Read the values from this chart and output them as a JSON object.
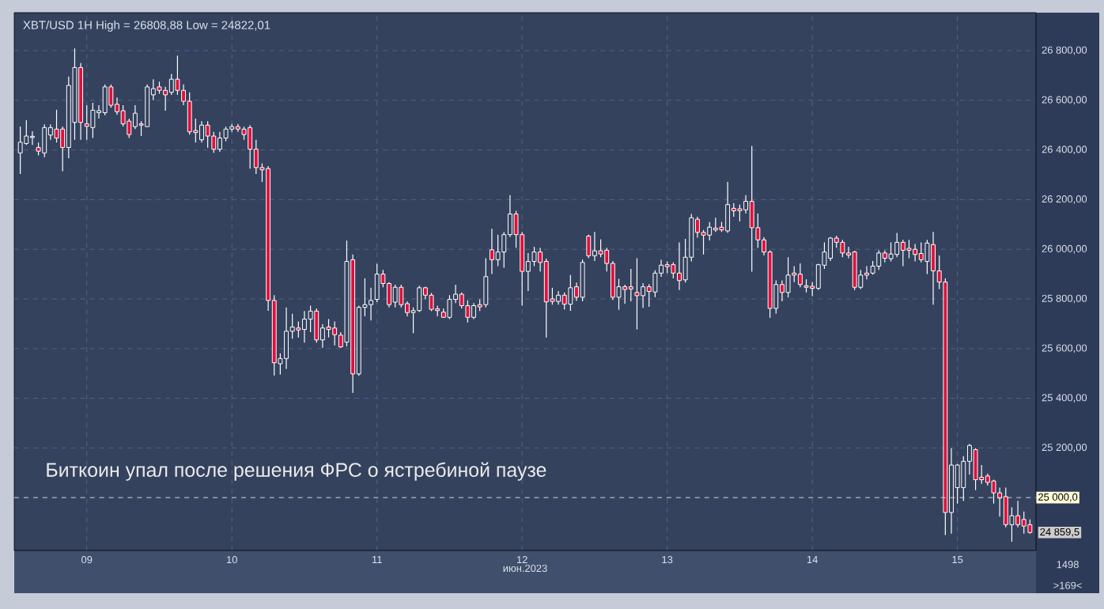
{
  "chart_data": {
    "type": "candlestick",
    "title": "XBT/USD 1H High = 26808,88 Low = 24822,01",
    "xlabel": "июн.2023",
    "x": [
      "2023-06-08T13:00",
      "2023-06-08T14:00",
      "2023-06-08T15:00",
      "2023-06-08T16:00",
      "2023-06-08T17:00",
      "2023-06-08T18:00",
      "2023-06-08T19:00",
      "2023-06-08T20:00",
      "2023-06-08T21:00",
      "2023-06-08T22:00",
      "2023-06-08T23:00",
      "2023-06-09T00:00",
      "2023-06-09T01:00",
      "2023-06-09T02:00",
      "2023-06-09T03:00",
      "2023-06-09T04:00",
      "2023-06-09T05:00",
      "2023-06-09T06:00",
      "2023-06-09T07:00",
      "2023-06-09T08:00",
      "2023-06-09T09:00",
      "2023-06-09T10:00",
      "2023-06-09T11:00",
      "2023-06-09T12:00",
      "2023-06-09T13:00",
      "2023-06-09T14:00",
      "2023-06-09T15:00",
      "2023-06-09T16:00",
      "2023-06-09T17:00",
      "2023-06-09T18:00",
      "2023-06-09T19:00",
      "2023-06-09T20:00",
      "2023-06-09T21:00",
      "2023-06-09T22:00",
      "2023-06-09T23:00",
      "2023-06-10T00:00",
      "2023-06-10T01:00",
      "2023-06-10T02:00",
      "2023-06-10T03:00",
      "2023-06-10T04:00",
      "2023-06-10T05:00",
      "2023-06-10T06:00",
      "2023-06-10T07:00",
      "2023-06-10T08:00",
      "2023-06-10T09:00",
      "2023-06-10T10:00",
      "2023-06-10T11:00",
      "2023-06-10T12:00",
      "2023-06-10T13:00",
      "2023-06-10T14:00",
      "2023-06-10T15:00",
      "2023-06-10T16:00",
      "2023-06-10T17:00",
      "2023-06-10T18:00",
      "2023-06-10T19:00",
      "2023-06-10T20:00",
      "2023-06-10T21:00",
      "2023-06-10T22:00",
      "2023-06-10T23:00",
      "2023-06-11T00:00",
      "2023-06-11T01:00",
      "2023-06-11T02:00",
      "2023-06-11T03:00",
      "2023-06-11T04:00",
      "2023-06-11T05:00",
      "2023-06-11T06:00",
      "2023-06-11T07:00",
      "2023-06-11T08:00",
      "2023-06-11T09:00",
      "2023-06-11T10:00",
      "2023-06-11T11:00",
      "2023-06-11T12:00",
      "2023-06-11T13:00",
      "2023-06-11T14:00",
      "2023-06-11T15:00",
      "2023-06-11T16:00",
      "2023-06-11T17:00",
      "2023-06-11T18:00",
      "2023-06-11T19:00",
      "2023-06-11T20:00",
      "2023-06-11T21:00",
      "2023-06-11T22:00",
      "2023-06-11T23:00",
      "2023-06-12T00:00",
      "2023-06-12T01:00",
      "2023-06-12T02:00",
      "2023-06-12T03:00",
      "2023-06-12T04:00",
      "2023-06-12T05:00",
      "2023-06-12T06:00",
      "2023-06-12T07:00",
      "2023-06-12T08:00",
      "2023-06-12T09:00",
      "2023-06-12T10:00",
      "2023-06-12T11:00",
      "2023-06-12T12:00",
      "2023-06-12T13:00",
      "2023-06-12T14:00",
      "2023-06-12T15:00",
      "2023-06-12T16:00",
      "2023-06-12T17:00",
      "2023-06-12T18:00",
      "2023-06-12T19:00",
      "2023-06-12T20:00",
      "2023-06-12T21:00",
      "2023-06-12T22:00",
      "2023-06-12T23:00",
      "2023-06-13T00:00",
      "2023-06-13T01:00",
      "2023-06-13T02:00",
      "2023-06-13T03:00",
      "2023-06-13T04:00",
      "2023-06-13T05:00",
      "2023-06-13T06:00",
      "2023-06-13T07:00",
      "2023-06-13T08:00",
      "2023-06-13T09:00",
      "2023-06-13T10:00",
      "2023-06-13T11:00",
      "2023-06-13T12:00",
      "2023-06-13T13:00",
      "2023-06-13T14:00",
      "2023-06-13T15:00",
      "2023-06-13T16:00",
      "2023-06-13T17:00",
      "2023-06-13T18:00",
      "2023-06-13T19:00",
      "2023-06-13T20:00",
      "2023-06-13T21:00",
      "2023-06-13T22:00",
      "2023-06-13T23:00",
      "2023-06-14T00:00",
      "2023-06-14T01:00",
      "2023-06-14T02:00",
      "2023-06-14T03:00",
      "2023-06-14T04:00",
      "2023-06-14T05:00",
      "2023-06-14T06:00",
      "2023-06-14T07:00",
      "2023-06-14T08:00",
      "2023-06-14T09:00",
      "2023-06-14T10:00",
      "2023-06-14T11:00",
      "2023-06-14T12:00",
      "2023-06-14T13:00",
      "2023-06-14T14:00",
      "2023-06-14T15:00",
      "2023-06-14T16:00",
      "2023-06-14T17:00",
      "2023-06-14T18:00",
      "2023-06-14T19:00",
      "2023-06-14T20:00",
      "2023-06-14T21:00",
      "2023-06-14T22:00",
      "2023-06-14T23:00",
      "2023-06-15T00:00",
      "2023-06-15T01:00",
      "2023-06-15T02:00",
      "2023-06-15T03:00",
      "2023-06-15T04:00",
      "2023-06-15T05:00",
      "2023-06-15T06:00",
      "2023-06-15T07:00",
      "2023-06-15T08:00",
      "2023-06-15T09:00",
      "2023-06-15T10:00",
      "2023-06-15T11:00",
      "2023-06-15T12:00"
    ],
    "ohlc": [
      [
        26388,
        26494,
        26303,
        26431
      ],
      [
        26426,
        26520,
        26420,
        26456
      ],
      [
        26450,
        26475,
        26420,
        26455
      ],
      [
        26410,
        26430,
        26378,
        26395
      ],
      [
        26388,
        26503,
        26371,
        26490
      ],
      [
        26460,
        26503,
        26441,
        26490
      ],
      [
        26484,
        26562,
        26430,
        26448
      ],
      [
        26484,
        26494,
        26314,
        26410
      ],
      [
        26410,
        26696,
        26367,
        26660
      ],
      [
        26511,
        26808.88,
        26441,
        26732
      ],
      [
        26732,
        26750,
        26441,
        26511
      ],
      [
        26505,
        26580,
        26441,
        26495
      ],
      [
        26490,
        26590,
        26448,
        26560
      ],
      [
        26550,
        26580,
        26527,
        26558
      ],
      [
        26550,
        26664,
        26540,
        26654
      ],
      [
        26654,
        26664,
        26570,
        26580
      ],
      [
        26584,
        26611,
        26541,
        26554
      ],
      [
        26558,
        26580,
        26494,
        26505
      ],
      [
        26516,
        26526,
        26448,
        26462
      ],
      [
        26494,
        26580,
        26484,
        26548
      ],
      [
        26505,
        26516,
        26456,
        26500
      ],
      [
        26494,
        26664,
        26494,
        26654
      ],
      [
        26622,
        26685,
        26600,
        26647
      ],
      [
        26654,
        26675,
        26626,
        26640
      ],
      [
        26640,
        26654,
        26558,
        26622
      ],
      [
        26632,
        26706,
        26622,
        26685
      ],
      [
        26685,
        26780,
        26622,
        26640
      ],
      [
        26640,
        26664,
        26580,
        26596
      ],
      [
        26596,
        26632,
        26462,
        26473
      ],
      [
        26478,
        26526,
        26430,
        26470
      ],
      [
        26441,
        26516,
        26430,
        26500
      ],
      [
        26500,
        26516,
        26409,
        26456
      ],
      [
        26456,
        26473,
        26388,
        26403
      ],
      [
        26403,
        26473,
        26392,
        26448
      ],
      [
        26448,
        26494,
        26435,
        26484
      ],
      [
        26484,
        26505,
        26473,
        26494
      ],
      [
        26494,
        26505,
        26473,
        26484
      ],
      [
        26484,
        26494,
        26441,
        26462
      ],
      [
        26490,
        26500,
        26325,
        26403
      ],
      [
        26403,
        26441,
        26303,
        26329
      ],
      [
        26329,
        26346,
        26271,
        26320
      ],
      [
        26325,
        26335,
        25752,
        25794
      ],
      [
        25794,
        25815,
        25492,
        25543
      ],
      [
        25539,
        25581,
        25496,
        25560
      ],
      [
        25560,
        25766,
        25518,
        25670
      ],
      [
        25670,
        25740,
        25640,
        25687
      ],
      [
        25683,
        25709,
        25645,
        25675
      ],
      [
        25677,
        25751,
        25624,
        25719
      ],
      [
        25719,
        25773,
        25666,
        25751
      ],
      [
        25751,
        25762,
        25624,
        25635
      ],
      [
        25635,
        25698,
        25603,
        25683
      ],
      [
        25687,
        25719,
        25645,
        25677
      ],
      [
        25683,
        25709,
        25613,
        25656
      ],
      [
        25654,
        25666,
        25603,
        25607
      ],
      [
        25626,
        26035,
        25609,
        25951
      ],
      [
        25958,
        25979,
        25422,
        25498
      ],
      [
        25498,
        25773,
        25490,
        25766
      ],
      [
        25766,
        25883,
        25730,
        25777
      ],
      [
        25777,
        25845,
        25713,
        25794
      ],
      [
        25798,
        25942,
        25787,
        25900
      ],
      [
        25900,
        25917,
        25847,
        25862
      ],
      [
        25862,
        25868,
        25766,
        25777
      ],
      [
        25787,
        25857,
        25766,
        25847
      ],
      [
        25847,
        25857,
        25766,
        25777
      ],
      [
        25781,
        25790,
        25730,
        25745
      ],
      [
        25745,
        25766,
        25662,
        25753
      ],
      [
        25753,
        25853,
        25747,
        25845
      ],
      [
        25845,
        25849,
        25798,
        25815
      ],
      [
        25815,
        25824,
        25751,
        25758
      ],
      [
        25760,
        25773,
        25730,
        25753
      ],
      [
        25747,
        25762,
        25724,
        25726
      ],
      [
        25726,
        25815,
        25719,
        25798
      ],
      [
        25798,
        25857,
        25783,
        25819
      ],
      [
        25819,
        25826,
        25762,
        25773
      ],
      [
        25773,
        25794,
        25705,
        25726
      ],
      [
        25726,
        25783,
        25719,
        25773
      ],
      [
        25777,
        25798,
        25751,
        25768
      ],
      [
        25777,
        25964,
        25766,
        25890
      ],
      [
        25998,
        26083,
        25900,
        25958
      ],
      [
        25958,
        26059,
        25932,
        25989
      ],
      [
        25989,
        26070,
        25926,
        26059
      ],
      [
        26059,
        26218,
        26049,
        26142
      ],
      [
        26142,
        26155,
        26006,
        26059
      ],
      [
        26059,
        26070,
        25773,
        25911
      ],
      [
        25911,
        25985,
        25832,
        25951
      ],
      [
        25951,
        26010,
        25932,
        25989
      ],
      [
        25989,
        26006,
        25911,
        25947
      ],
      [
        25951,
        25962,
        25645,
        25788
      ],
      [
        25800,
        25845,
        25777,
        25790
      ],
      [
        25790,
        25832,
        25777,
        25815
      ],
      [
        25815,
        25826,
        25758,
        25779
      ],
      [
        25779,
        25896,
        25752,
        25845
      ],
      [
        25849,
        25866,
        25792,
        25807
      ],
      [
        25807,
        25958,
        25790,
        25947
      ],
      [
        26053,
        26059,
        25964,
        25974
      ],
      [
        25974,
        26070,
        25953,
        25994
      ],
      [
        25994,
        26040,
        25968,
        25981
      ],
      [
        25996,
        26006,
        25911,
        25943
      ],
      [
        25943,
        25953,
        25796,
        25807
      ],
      [
        25807,
        25881,
        25756,
        25849
      ],
      [
        25849,
        25857,
        25781,
        25838
      ],
      [
        25849,
        25921,
        25790,
        25840
      ],
      [
        25826,
        25964,
        25677,
        25813
      ],
      [
        25813,
        25864,
        25764,
        25849
      ],
      [
        25849,
        25860,
        25768,
        25830
      ],
      [
        25828,
        25915,
        25807,
        25904
      ],
      [
        25904,
        25958,
        25889,
        25936
      ],
      [
        25938,
        25951,
        25904,
        25930
      ],
      [
        25938,
        25947,
        25883,
        25904
      ],
      [
        25904,
        26028,
        25836,
        25874
      ],
      [
        25877,
        26042,
        25866,
        25968
      ],
      [
        25968,
        26142,
        25951,
        26127
      ],
      [
        26121,
        26131,
        26047,
        26068
      ],
      [
        26068,
        26078,
        25979,
        26057
      ],
      [
        26057,
        26110,
        26036,
        26089
      ],
      [
        26085,
        26127,
        26070,
        26078
      ],
      [
        26089,
        26110,
        26070,
        26078
      ],
      [
        26074,
        26271,
        26066,
        26180
      ],
      [
        26165,
        26186,
        26131,
        26155
      ],
      [
        26163,
        26180,
        26112,
        26155
      ],
      [
        26159,
        26218,
        26144,
        26193
      ],
      [
        26193,
        26416,
        25910,
        26087
      ],
      [
        26087,
        26144,
        26006,
        26038
      ],
      [
        26038,
        26049,
        25975,
        25989
      ],
      [
        25989,
        25996,
        25724,
        25762
      ],
      [
        25762,
        25875,
        25741,
        25858
      ],
      [
        25858,
        25875,
        25790,
        25826
      ],
      [
        25826,
        25968,
        25806,
        25896
      ],
      [
        25904,
        25932,
        25868,
        25896
      ],
      [
        25900,
        25943,
        25847,
        25858
      ],
      [
        25853,
        25879,
        25826,
        25847
      ],
      [
        25851,
        25868,
        25811,
        25843
      ],
      [
        25843,
        25942,
        25836,
        25938
      ],
      [
        25936,
        26028,
        25921,
        25989
      ],
      [
        25964,
        26049,
        25953,
        26045
      ],
      [
        26045,
        26055,
        26006,
        26028
      ],
      [
        26028,
        26038,
        25968,
        25985
      ],
      [
        25985,
        26010,
        25964,
        25977
      ],
      [
        25989,
        25994,
        25836,
        25847
      ],
      [
        25847,
        25917,
        25840,
        25896
      ],
      [
        25904,
        25932,
        25879,
        25896
      ],
      [
        25904,
        25953,
        25898,
        25932
      ],
      [
        25932,
        25996,
        25917,
        25985
      ],
      [
        25985,
        25996,
        25947,
        25964
      ],
      [
        25962,
        26028,
        25951,
        25981
      ],
      [
        25979,
        26066,
        25968,
        26028
      ],
      [
        26028,
        26038,
        25932,
        25996
      ],
      [
        26004,
        26038,
        25964,
        25996
      ],
      [
        26000,
        26021,
        25951,
        25979
      ],
      [
        25983,
        26028,
        25947,
        25958
      ],
      [
        25951,
        26038,
        25900,
        26025
      ],
      [
        26019,
        26070,
        25777,
        25913
      ],
      [
        25913,
        25975,
        25840,
        25868
      ],
      [
        25868,
        25883,
        24849,
        24940
      ],
      [
        24940,
        25199,
        24855,
        25131
      ],
      [
        25040,
        25135,
        24976,
        25131
      ],
      [
        25040,
        25167,
        24986,
        25146
      ],
      [
        25146,
        25216,
        25093,
        25210
      ],
      [
        25193,
        25199,
        25030,
        25072
      ],
      [
        25082,
        25131,
        25055,
        25072
      ],
      [
        25087,
        25097,
        25048,
        25061
      ],
      [
        25067,
        25072,
        24976,
        25019
      ],
      [
        25019,
        25040,
        24923,
        24998
      ],
      [
        25004,
        25040,
        24880,
        24891
      ],
      [
        24891,
        24961,
        24822.01,
        24927
      ],
      [
        24927,
        24987,
        24880,
        24891
      ],
      [
        24912,
        24944,
        24855,
        24885
      ],
      [
        24891,
        24912,
        24855,
        24859.5
      ]
    ],
    "xlim": [
      "2023-06-08T12:00",
      "2023-06-15T13:00"
    ],
    "ylim": [
      24787,
      26953
    ],
    "xticks": [
      {
        "value": "2023-06-09",
        "label": "09"
      },
      {
        "value": "2023-06-10",
        "label": "10"
      },
      {
        "value": "2023-06-11",
        "label": "11"
      },
      {
        "value": "2023-06-12",
        "label": "12"
      },
      {
        "value": "2023-06-13",
        "label": "13"
      },
      {
        "value": "2023-06-14",
        "label": "14"
      },
      {
        "value": "2023-06-15",
        "label": "15"
      }
    ],
    "yticks": [
      {
        "value": 25200,
        "label": "25 200,00"
      },
      {
        "value": 25400,
        "label": "25 400,00"
      },
      {
        "value": 25600,
        "label": "25 600,00"
      },
      {
        "value": 25800,
        "label": "25 800,00"
      },
      {
        "value": 26000,
        "label": "26 000,00"
      },
      {
        "value": 26200,
        "label": "26 200,00"
      },
      {
        "value": 26400,
        "label": "26 400,00"
      },
      {
        "value": 26600,
        "label": "26 600,00"
      },
      {
        "value": 26800,
        "label": "26 800,00"
      }
    ],
    "grid": true,
    "ref_lines": [
      {
        "axis": "y",
        "value": 25000,
        "label": "25 000,0",
        "line_style": "dashed"
      }
    ],
    "annotations": [
      "Биткоин упал после решения ФРС о ястребиной паузе",
      {
        "text": "24 859,5",
        "x": "2023-06-15T12:00",
        "y": 24859.5
      },
      "1498",
      ">169<"
    ]
  }
}
